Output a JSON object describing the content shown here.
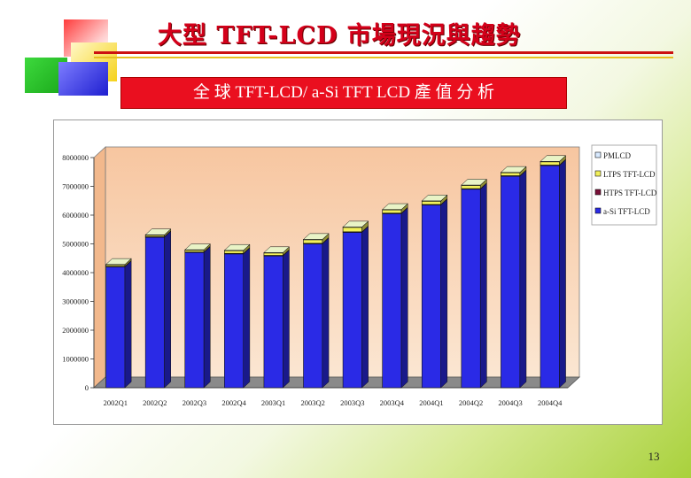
{
  "title": "大型 TFT-LCD 市場現況與趨勢",
  "subtitle": "全 球 TFT-LCD/ a-Si TFT LCD 產 值 分 析",
  "page_number": "13",
  "colors": {
    "a-Si TFT-LCD": "#2a2ae6",
    "HTPS TFT-LCD": "#7a1038",
    "LTPS TFT-LCD": "#f2f05a",
    "PMLCD": "#d8eaff"
  },
  "chart_data": {
    "type": "bar",
    "stacked": true,
    "categories": [
      "2002Q1",
      "2002Q2",
      "2002Q3",
      "2002Q4",
      "2003Q1",
      "2003Q2",
      "2003Q3",
      "2003Q4",
      "2004Q1",
      "2004Q2",
      "2004Q3",
      "2004Q4"
    ],
    "series": [
      {
        "name": "a-Si TFT-LCD",
        "values": [
          4200000,
          5230000,
          4700000,
          4650000,
          4580000,
          5000000,
          5400000,
          6050000,
          6350000,
          6900000,
          7350000,
          7720000
        ]
      },
      {
        "name": "HTPS TFT-LCD",
        "values": [
          20000,
          20000,
          20000,
          20000,
          20000,
          20000,
          20000,
          20000,
          20000,
          20000,
          20000,
          20000
        ]
      },
      {
        "name": "LTPS TFT-LCD",
        "values": [
          60000,
          60000,
          70000,
          100000,
          90000,
          130000,
          160000,
          120000,
          120000,
          120000,
          110000,
          120000
        ]
      },
      {
        "name": "PMLCD",
        "values": [
          5000,
          5000,
          5000,
          5000,
          5000,
          5000,
          5000,
          5000,
          5000,
          5000,
          5000,
          5000
        ]
      }
    ],
    "y_ticks": [
      "0",
      "1000000",
      "2000000",
      "3000000",
      "4000000",
      "5000000",
      "6000000",
      "7000000",
      "8000000"
    ],
    "ylim": [
      0,
      8000000
    ],
    "legend": [
      "PMLCD",
      "LTPS TFT-LCD",
      "HTPS TFT-LCD",
      "a-Si TFT-LCD"
    ],
    "legend_position": "right",
    "grid": false,
    "three_d": true
  }
}
